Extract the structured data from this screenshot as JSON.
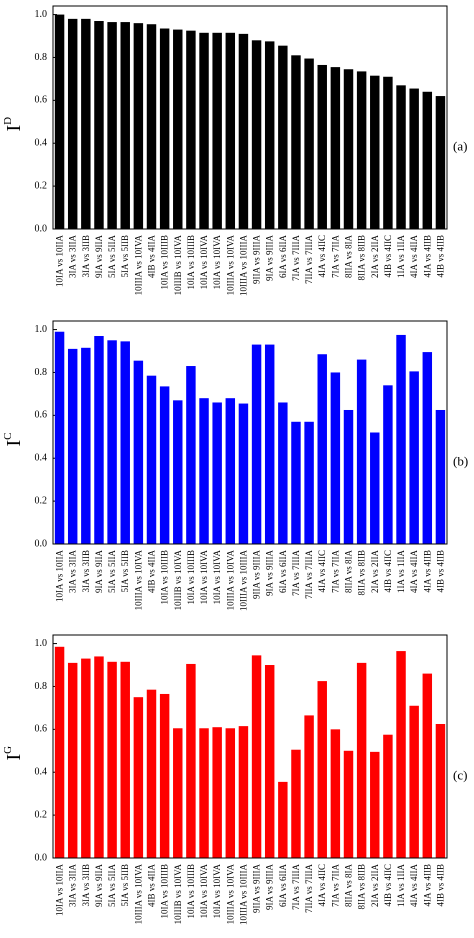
{
  "chart_data": [
    {
      "type": "bar",
      "panel_label": "(a)",
      "y_label": "I",
      "y_label_sup": "D",
      "color": "#000000",
      "categories": [
        "10IA vs 10IIA",
        "3IA vs 3IIA",
        "3IA vs 3IIB",
        "9IA vs 9IIA",
        "5IA vs 5IIA",
        "5IA vs 5IIB",
        "10IIIA vs 10IVA",
        "4IB vs 4IIA",
        "10IA vs 10IIIB",
        "10IIIB vs 10IVA",
        "10IA vs 10IIIB",
        "10IA vs 10IVA",
        "10IA vs 10IVA",
        "10IIIA vs 10IVA",
        "10IIIA vs 10IIIA",
        "9IIA vs 9IIIA",
        "9IA vs 9IIIA",
        "6IA vs 6IIA",
        "7IA vs 7IIIA",
        "7IIA vs 7IIIA",
        "4IA vs 4IIC",
        "7IA vs 7IIA",
        "8IIA vs 8IA",
        "8IIA vs 8IIB",
        "2IA vs 2IIA",
        "4IB vs 4IIC",
        "1IA vs 1IIA",
        "4IA vs 4IIA",
        "4IA vs 4IIB",
        "4IB vs 4IIB"
      ],
      "values": [
        1.0,
        0.98,
        0.98,
        0.97,
        0.965,
        0.965,
        0.96,
        0.955,
        0.935,
        0.93,
        0.925,
        0.915,
        0.915,
        0.915,
        0.91,
        0.88,
        0.875,
        0.855,
        0.81,
        0.795,
        0.765,
        0.755,
        0.745,
        0.735,
        0.715,
        0.71,
        0.67,
        0.655,
        0.64,
        0.62
      ],
      "ylim": [
        0,
        1.04
      ],
      "yticks": [
        {
          "value": 0,
          "label": "0.0"
        },
        0.2,
        0.4,
        0.6,
        0.8,
        {
          "value": 1,
          "label": "1.0"
        }
      ]
    },
    {
      "type": "bar",
      "panel_label": "(b)",
      "y_label": "I",
      "y_label_sup": "C",
      "color": "#0000ff",
      "categories": [
        "10IA vs 10IIA",
        "3IA vs 3IIA",
        "3IA vs 3IIB",
        "9IA vs 9IIA",
        "5IA vs 5IIA",
        "5IA vs 5IIB",
        "10IIIA vs 10IVA",
        "4IB vs 4IIA",
        "10IA vs 10IIIB",
        "10IIIB vs 10IVA",
        "10IA vs 10IIIB",
        "10IA vs 10IVA",
        "10IA vs 10IVA",
        "10IIIA vs 10IVA",
        "10IIIA vs 10IIIA",
        "9IIA vs 9IIIA",
        "9IA vs 9IIIA",
        "6IA vs 6IIA",
        "7IA vs 7IIIA",
        "7IIA vs 7IIIA",
        "4IA vs 4IIC",
        "7IA vs 7IIA",
        "8IIA vs 8IA",
        "8IIA vs 8IIB",
        "2IA vs 2IIA",
        "4IB vs 4IIC",
        "1IA vs 1IIA",
        "4IA vs 4IIA",
        "4IA vs 4IIB",
        "4IB vs 4IIB"
      ],
      "values": [
        0.99,
        0.91,
        0.915,
        0.97,
        0.95,
        0.945,
        0.855,
        0.785,
        0.735,
        0.67,
        0.83,
        0.68,
        0.66,
        0.68,
        0.655,
        0.93,
        0.93,
        0.66,
        0.57,
        0.57,
        0.885,
        0.8,
        0.625,
        0.86,
        0.52,
        0.74,
        0.975,
        0.805,
        0.895,
        0.625
      ],
      "ylim": [
        0,
        1.04
      ],
      "yticks": [
        {
          "value": 0,
          "label": "0.0"
        },
        0.2,
        0.4,
        0.6,
        0.8,
        {
          "value": 1,
          "label": "1.0"
        }
      ]
    },
    {
      "type": "bar",
      "panel_label": "(c)",
      "y_label": "I",
      "y_label_sup": "G",
      "color": "#ff0000",
      "categories": [
        "10IA vs 10IIA",
        "3IA vs 3IIA",
        "3IA vs 3IIB",
        "9IA vs 9IIA",
        "5IA vs 5IIA",
        "5IA vs 5IIB",
        "10IIIA vs 10IVA",
        "4IB vs 4IIA",
        "10IA vs 10IIIB",
        "10IIIB vs 10IVA",
        "10IA vs 10IIIB",
        "10IA vs 10IVA",
        "10IA vs 10IVA",
        "10IIIA vs 10IVA",
        "10IIIA vs 10IIIA",
        "9IIA vs 9IIIA",
        "9IA vs 9IIIA",
        "6IA vs 6IIA",
        "7IA vs 7IIIA",
        "7IIA vs 7IIIA",
        "4IA vs 4IIC",
        "7IA vs 7IIA",
        "8IIA vs 8IA",
        "8IIA vs 8IIB",
        "2IA vs 2IIA",
        "4IB vs 4IIC",
        "1IA vs 1IIA",
        "4IA vs 4IIA",
        "4IA vs 4IIB",
        "4IB vs 4IIB"
      ],
      "values": [
        0.985,
        0.91,
        0.93,
        0.94,
        0.915,
        0.915,
        0.75,
        0.785,
        0.765,
        0.605,
        0.905,
        0.605,
        0.61,
        0.605,
        0.615,
        0.945,
        0.9,
        0.355,
        0.505,
        0.665,
        0.825,
        0.6,
        0.5,
        0.91,
        0.495,
        0.575,
        0.965,
        0.71,
        0.86,
        0.625
      ],
      "ylim": [
        0,
        1.04
      ],
      "yticks": [
        {
          "value": 0,
          "label": "0.0"
        },
        0.2,
        0.4,
        0.6,
        0.8,
        {
          "value": 1,
          "label": "1.0"
        }
      ]
    }
  ]
}
